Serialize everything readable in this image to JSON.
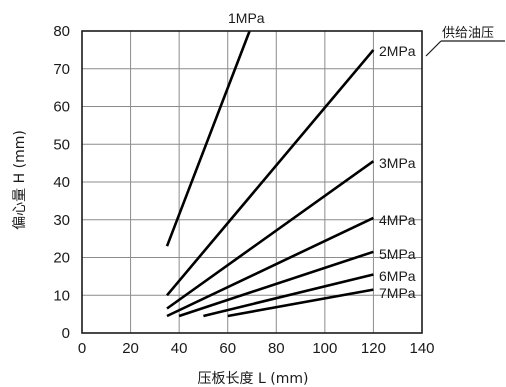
{
  "chart_data": {
    "type": "line",
    "title": "",
    "xlabel": "压板长度 L (mm)",
    "ylabel": "偏心量 H (mm)",
    "xlim": [
      0,
      140
    ],
    "ylim": [
      0,
      80
    ],
    "xticks": [
      0,
      20,
      40,
      60,
      80,
      100,
      120,
      140
    ],
    "yticks": [
      0,
      10,
      20,
      30,
      40,
      50,
      60,
      70,
      80
    ],
    "grid": true,
    "legend_title": "供给油压",
    "series": [
      {
        "name": "1MPa",
        "x": [
          35,
          69
        ],
        "y": [
          23,
          80
        ]
      },
      {
        "name": "2MPa",
        "x": [
          35,
          120
        ],
        "y": [
          10,
          75
        ]
      },
      {
        "name": "3MPa",
        "x": [
          35,
          120
        ],
        "y": [
          6.5,
          45.5
        ]
      },
      {
        "name": "4MPa",
        "x": [
          35,
          120
        ],
        "y": [
          4.5,
          30.5
        ]
      },
      {
        "name": "5MPa",
        "x": [
          40,
          120
        ],
        "y": [
          4.5,
          21.5
        ]
      },
      {
        "name": "6MPa",
        "x": [
          50,
          120
        ],
        "y": [
          4.5,
          15.5
        ]
      },
      {
        "name": "7MPa",
        "x": [
          60,
          120
        ],
        "y": [
          4.5,
          11.5
        ]
      }
    ],
    "colors": {
      "line": "#000000",
      "grid": "#8c8c8c",
      "frame": "#1a1a1a"
    }
  }
}
